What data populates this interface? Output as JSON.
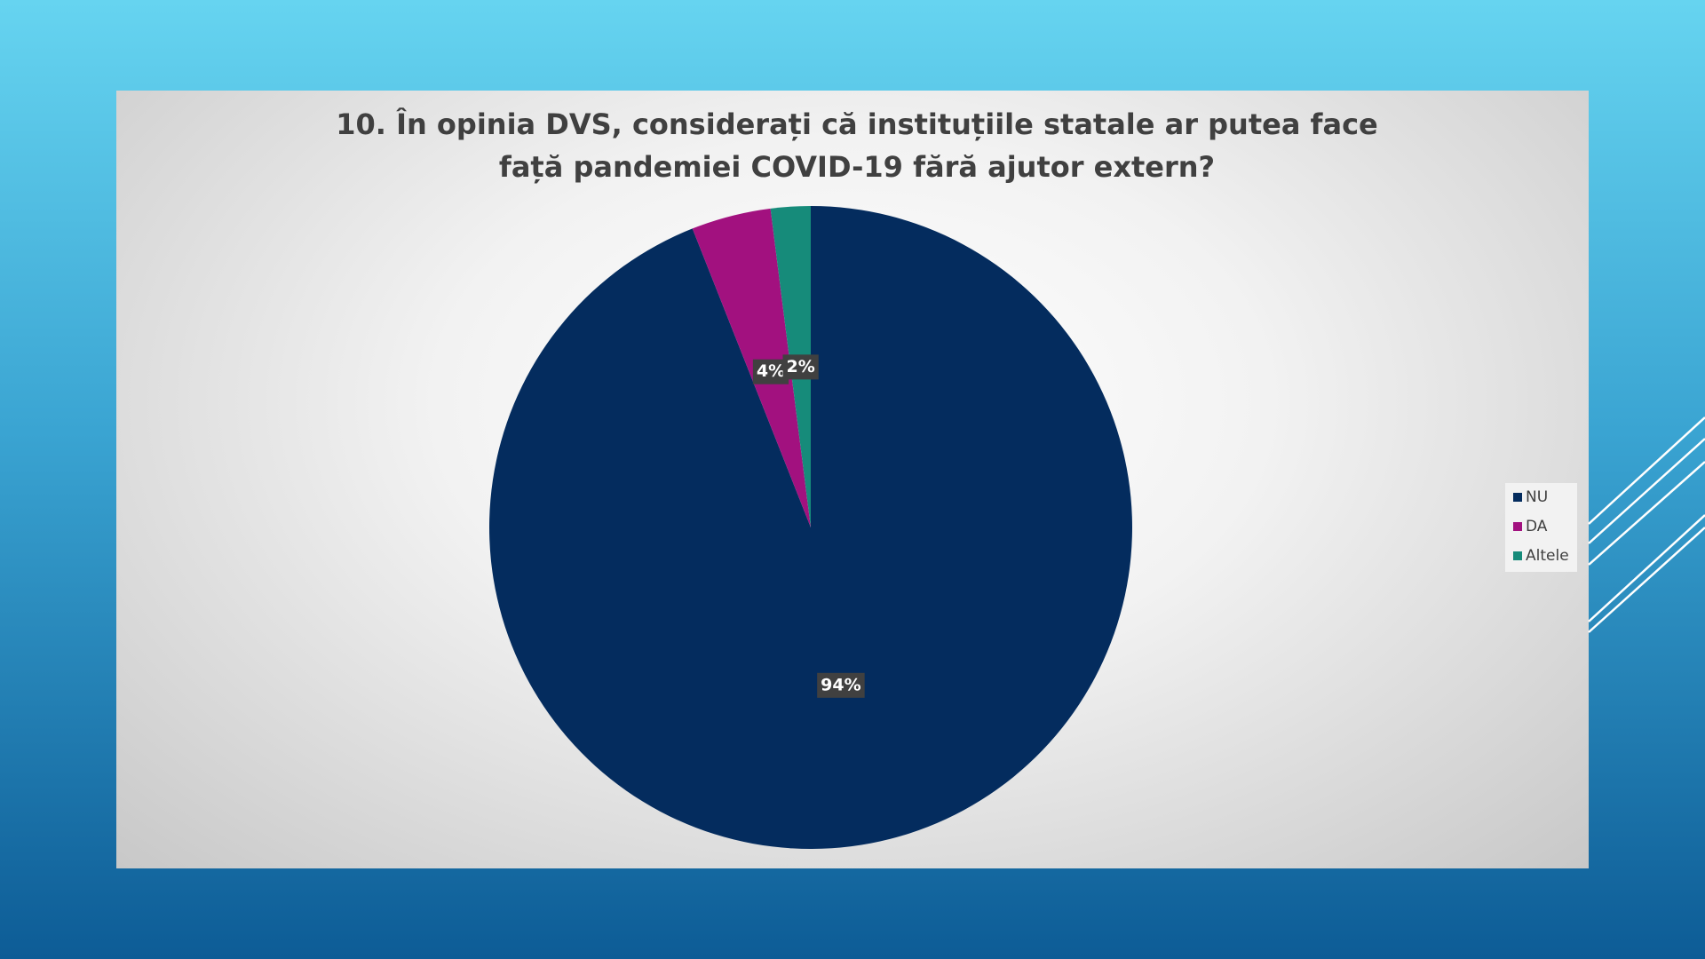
{
  "chart_data": {
    "type": "pie",
    "title": "10. În opinia DVS, considerați că instituțiile statale ar putea face față pandemiei COVID-19 fără ajutor extern?",
    "categories": [
      "NU",
      "DA",
      "Altele"
    ],
    "values": [
      94,
      4,
      2
    ],
    "value_labels": [
      "94%",
      "4%",
      "2%"
    ],
    "colors": [
      "#042c5e",
      "#a2117f",
      "#168b7a"
    ],
    "legend": "right"
  }
}
